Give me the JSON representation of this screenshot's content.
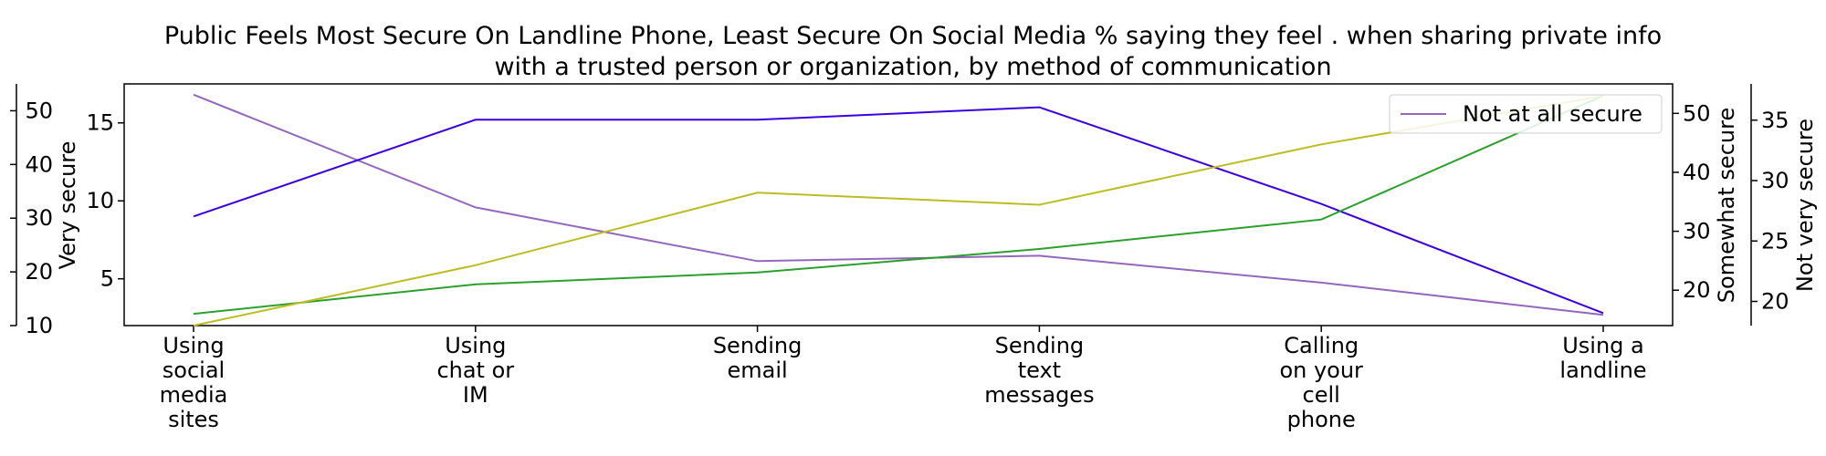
{
  "chart_data": {
    "type": "line",
    "title_lines": [
      "Public Feels Most Secure On Landline Phone, Least Secure On Social Media % saying they feel . when sharing private info",
      "with a trusted person or organization, by method of communication"
    ],
    "categories": [
      [
        "Using",
        "social",
        "media",
        "sites"
      ],
      [
        "Using",
        "chat or",
        "IM"
      ],
      [
        "Sending",
        "email"
      ],
      [
        "Sending",
        "text",
        "messages"
      ],
      [
        "Calling",
        "on your",
        "cell",
        "phone"
      ],
      [
        "Using a",
        "landline"
      ]
    ],
    "legend": {
      "label": "Not at all secure",
      "placement": "top-right"
    },
    "axes": {
      "not_at_all": {
        "ticks": [
          10,
          20,
          30,
          40,
          50
        ],
        "ylim": [
          10,
          55
        ]
      },
      "very": {
        "label": "Very secure",
        "ticks": [
          5,
          10,
          15
        ],
        "ylim": [
          2,
          17.5
        ]
      },
      "somewhat": {
        "label": "Somewhat secure",
        "ticks": [
          20,
          30,
          40,
          50
        ],
        "ylim": [
          14,
          55
        ]
      },
      "not_very": {
        "label": "Not very secure",
        "ticks": [
          20,
          25,
          30,
          35
        ],
        "ylim": [
          18,
          38
        ]
      }
    },
    "series": [
      {
        "key": "not_at_all",
        "name": "Not at all secure",
        "color": "#9467bd",
        "values": [
          53,
          32,
          22,
          23,
          18,
          12
        ]
      },
      {
        "key": "very",
        "color": "#3b00e0",
        "values": [
          9,
          15.2,
          15.2,
          16,
          9.8,
          2.8
        ]
      },
      {
        "key": "somewhat",
        "color": "#2ca02c",
        "values": [
          16,
          21,
          23,
          27,
          32,
          53
        ]
      },
      {
        "key": "not_very",
        "color": "#bcbd22",
        "values": [
          18,
          23,
          29,
          28,
          33,
          37
        ]
      }
    ]
  }
}
